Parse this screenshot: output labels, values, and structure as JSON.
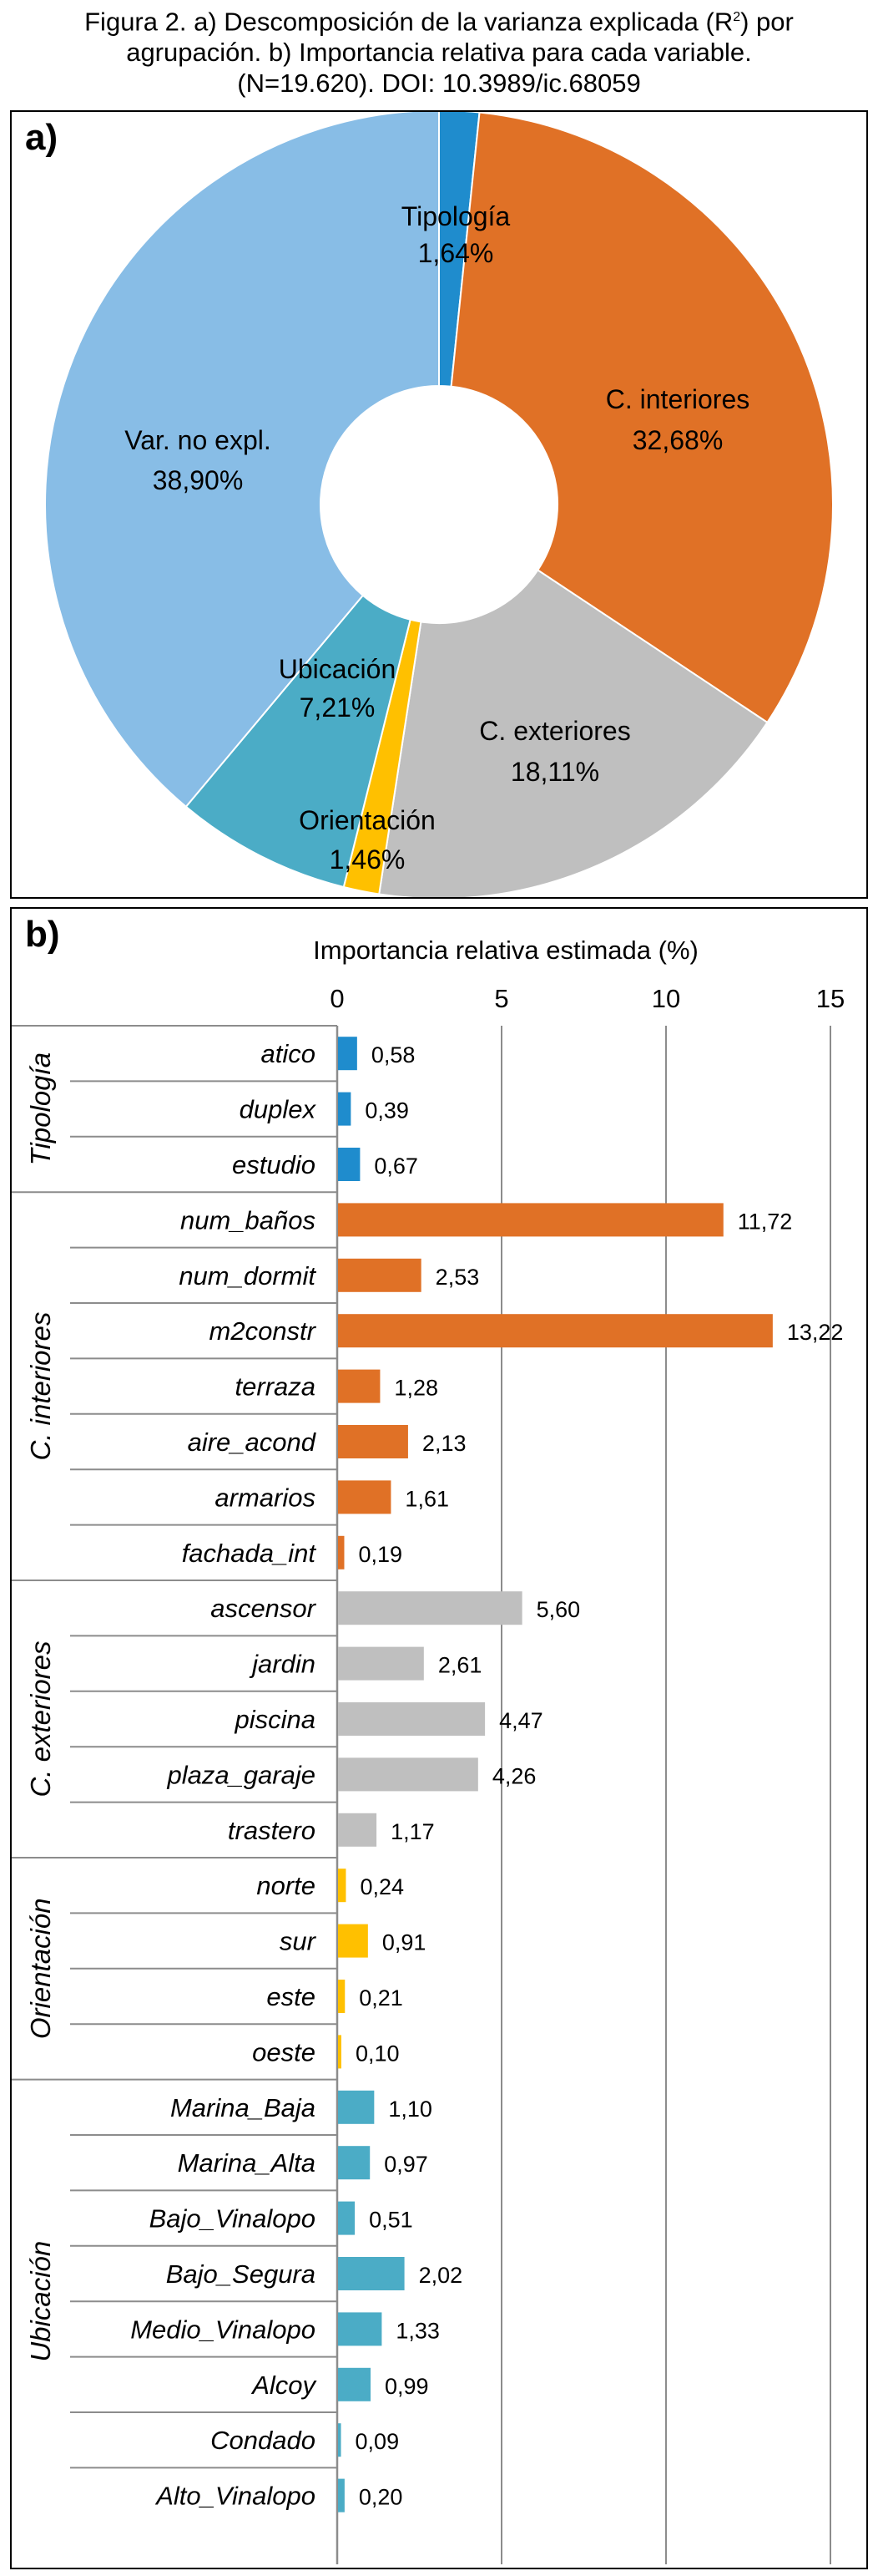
{
  "caption": {
    "line1_pre": "Figura 2. a) Descomposición de la varianza explicada (R",
    "line1_sup": "2",
    "line1_post": ") por",
    "line2": "agrupación. b) Importancia relativa para cada variable.",
    "line3": "(N=19.620). DOI: 10.3989/ic.68059"
  },
  "panels": {
    "a_label": "a)",
    "b_label": "b)"
  },
  "colors": {
    "Tipología": "#1f8ccd",
    "C. interiores": "#e07126",
    "C. exteriores": "#bfbfbf",
    "Orientación": "#ffc000",
    "Ubicación": "#4bacc6",
    "Var. no expl.": "#88bde6"
  },
  "chart_data": [
    {
      "type": "pie",
      "donut": true,
      "slices": [
        {
          "label": "Tipología",
          "value": 1.64,
          "value_label": "1,64%"
        },
        {
          "label": "C. interiores",
          "value": 32.68,
          "value_label": "32,68%"
        },
        {
          "label": "C. exteriores",
          "value": 18.11,
          "value_label": "18,11%"
        },
        {
          "label": "Orientación",
          "value": 1.46,
          "value_label": "1,46%"
        },
        {
          "label": "Ubicación",
          "value": 7.21,
          "value_label": "7,21%"
        },
        {
          "label": "Var. no expl.",
          "value": 38.9,
          "value_label": "38,90%"
        }
      ]
    },
    {
      "type": "bar",
      "orientation": "horizontal",
      "title": "Importancia relativa estimada (%)",
      "xlim": [
        0,
        15
      ],
      "xticks": [
        0,
        5,
        10,
        15
      ],
      "grid": true,
      "groups": [
        {
          "name": "Tipología",
          "items": [
            {
              "label": "atico",
              "value": 0.58,
              "value_label": "0,58"
            },
            {
              "label": "duplex",
              "value": 0.39,
              "value_label": "0,39"
            },
            {
              "label": "estudio",
              "value": 0.67,
              "value_label": "0,67"
            }
          ]
        },
        {
          "name": "C. interiores",
          "items": [
            {
              "label": "num_baños",
              "value": 11.72,
              "value_label": "11,72"
            },
            {
              "label": "num_dormit",
              "value": 2.53,
              "value_label": "2,53"
            },
            {
              "label": "m2constr",
              "value": 13.22,
              "value_label": "13,22"
            },
            {
              "label": "terraza",
              "value": 1.28,
              "value_label": "1,28"
            },
            {
              "label": "aire_acond",
              "value": 2.13,
              "value_label": "2,13"
            },
            {
              "label": "armarios",
              "value": 1.61,
              "value_label": "1,61"
            },
            {
              "label": "fachada_int",
              "value": 0.19,
              "value_label": "0,19"
            }
          ]
        },
        {
          "name": "C. exteriores",
          "items": [
            {
              "label": "ascensor",
              "value": 5.6,
              "value_label": "5,60"
            },
            {
              "label": "jardin",
              "value": 2.61,
              "value_label": "2,61"
            },
            {
              "label": "piscina",
              "value": 4.47,
              "value_label": "4,47"
            },
            {
              "label": "plaza_garaje",
              "value": 4.26,
              "value_label": "4,26"
            },
            {
              "label": "trastero",
              "value": 1.17,
              "value_label": "1,17"
            }
          ]
        },
        {
          "name": "Orientación",
          "items": [
            {
              "label": "norte",
              "value": 0.24,
              "value_label": "0,24"
            },
            {
              "label": "sur",
              "value": 0.91,
              "value_label": "0,91"
            },
            {
              "label": "este",
              "value": 0.21,
              "value_label": "0,21"
            },
            {
              "label": "oeste",
              "value": 0.1,
              "value_label": "0,10"
            }
          ]
        },
        {
          "name": "Ubicación",
          "items": [
            {
              "label": "Marina_Baja",
              "value": 1.1,
              "value_label": "1,10"
            },
            {
              "label": "Marina_Alta",
              "value": 0.97,
              "value_label": "0,97"
            },
            {
              "label": "Bajo_Vinalopo",
              "value": 0.51,
              "value_label": "0,51"
            },
            {
              "label": "Bajo_Segura",
              "value": 2.02,
              "value_label": "2,02"
            },
            {
              "label": "Medio_Vinalopo",
              "value": 1.33,
              "value_label": "1,33"
            },
            {
              "label": "Alcoy",
              "value": 0.99,
              "value_label": "0,99"
            },
            {
              "label": "Condado",
              "value": 0.09,
              "value_label": "0,09"
            },
            {
              "label": "Alto_Vinalopo",
              "value": 0.2,
              "value_label": "0,20"
            }
          ]
        }
      ]
    }
  ]
}
